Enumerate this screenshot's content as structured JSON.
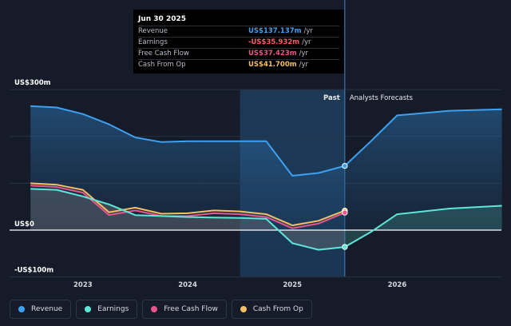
{
  "tooltip": {
    "date": "Jun 30 2025",
    "rows": [
      {
        "label": "Revenue",
        "value": "US$137.137m",
        "unit": "/yr",
        "color": "#3ea1f0"
      },
      {
        "label": "Earnings",
        "value": "-US$35.932m",
        "unit": "/yr",
        "color": "#ff5a5f"
      },
      {
        "label": "Free Cash Flow",
        "value": "US$37.423m",
        "unit": "/yr",
        "color": "#e8558b"
      },
      {
        "label": "Cash From Op",
        "value": "US$41.700m",
        "unit": "/yr",
        "color": "#f5bf63"
      }
    ]
  },
  "legend": [
    {
      "label": "Revenue",
      "color": "#3ea1f0"
    },
    {
      "label": "Earnings",
      "color": "#5ee6d7"
    },
    {
      "label": "Free Cash Flow",
      "color": "#e8558b"
    },
    {
      "label": "Cash From Op",
      "color": "#f5bf63"
    }
  ],
  "chart_data": {
    "type": "line",
    "y_unit_labels": {
      "top": "US$300m",
      "zero": "US$0",
      "bottom": "-US$100m"
    },
    "ylim": [
      -100,
      300
    ],
    "x_ticks": [
      {
        "label": "2023",
        "x": 2023.0
      },
      {
        "label": "2024",
        "x": 2024.0
      },
      {
        "label": "2025",
        "x": 2025.0
      },
      {
        "label": "2026",
        "x": 2026.0
      }
    ],
    "xlim": [
      2022.3,
      2027.0
    ],
    "past_label": "Past",
    "forecast_label": "Analysts Forecasts",
    "past_region": [
      2022.5,
      2025.5
    ],
    "highlight_region": [
      2024.5,
      2025.5
    ],
    "series": [
      {
        "name": "Revenue",
        "color": "#3ea1f0",
        "area": true,
        "points": [
          [
            2022.5,
            265
          ],
          [
            2022.75,
            262
          ],
          [
            2023.0,
            248
          ],
          [
            2023.25,
            226
          ],
          [
            2023.5,
            198
          ],
          [
            2023.75,
            188
          ],
          [
            2024.0,
            190
          ],
          [
            2024.25,
            190
          ],
          [
            2024.5,
            190
          ],
          [
            2024.75,
            190
          ],
          [
            2025.0,
            116
          ],
          [
            2025.25,
            122
          ],
          [
            2025.5,
            137.137
          ]
        ],
        "forecast": [
          [
            2025.5,
            137.137
          ],
          [
            2025.75,
            190
          ],
          [
            2026.0,
            245
          ],
          [
            2026.5,
            255
          ],
          [
            2027.0,
            258
          ]
        ]
      },
      {
        "name": "Earnings",
        "color": "#5ee6d7",
        "area": true,
        "points": [
          [
            2022.5,
            88
          ],
          [
            2022.75,
            86
          ],
          [
            2023.0,
            72
          ],
          [
            2023.25,
            55
          ],
          [
            2023.5,
            32
          ],
          [
            2023.75,
            30
          ],
          [
            2024.0,
            28
          ],
          [
            2024.25,
            27
          ],
          [
            2024.5,
            26
          ],
          [
            2024.75,
            24
          ],
          [
            2025.0,
            -28
          ],
          [
            2025.25,
            -42
          ],
          [
            2025.5,
            -35.932
          ]
        ],
        "forecast": [
          [
            2025.5,
            -35.932
          ],
          [
            2025.75,
            -4
          ],
          [
            2026.0,
            34
          ],
          [
            2026.5,
            46
          ],
          [
            2027.0,
            52
          ]
        ]
      },
      {
        "name": "Free Cash Flow",
        "color": "#e8558b",
        "area": false,
        "points": [
          [
            2022.5,
            95
          ],
          [
            2022.75,
            92
          ],
          [
            2023.0,
            80
          ],
          [
            2023.25,
            32
          ],
          [
            2023.5,
            42
          ],
          [
            2023.75,
            30
          ],
          [
            2024.0,
            30
          ],
          [
            2024.25,
            36
          ],
          [
            2024.5,
            34
          ],
          [
            2024.75,
            28
          ],
          [
            2025.0,
            4
          ],
          [
            2025.25,
            14
          ],
          [
            2025.5,
            37.423
          ]
        ]
      },
      {
        "name": "Cash From Op",
        "color": "#f5bf63",
        "area": false,
        "points": [
          [
            2022.5,
            100
          ],
          [
            2022.75,
            97
          ],
          [
            2023.0,
            86
          ],
          [
            2023.25,
            38
          ],
          [
            2023.5,
            48
          ],
          [
            2023.75,
            35
          ],
          [
            2024.0,
            36
          ],
          [
            2024.25,
            42
          ],
          [
            2024.5,
            40
          ],
          [
            2024.75,
            34
          ],
          [
            2025.0,
            10
          ],
          [
            2025.25,
            20
          ],
          [
            2025.5,
            41.7
          ]
        ]
      }
    ]
  }
}
